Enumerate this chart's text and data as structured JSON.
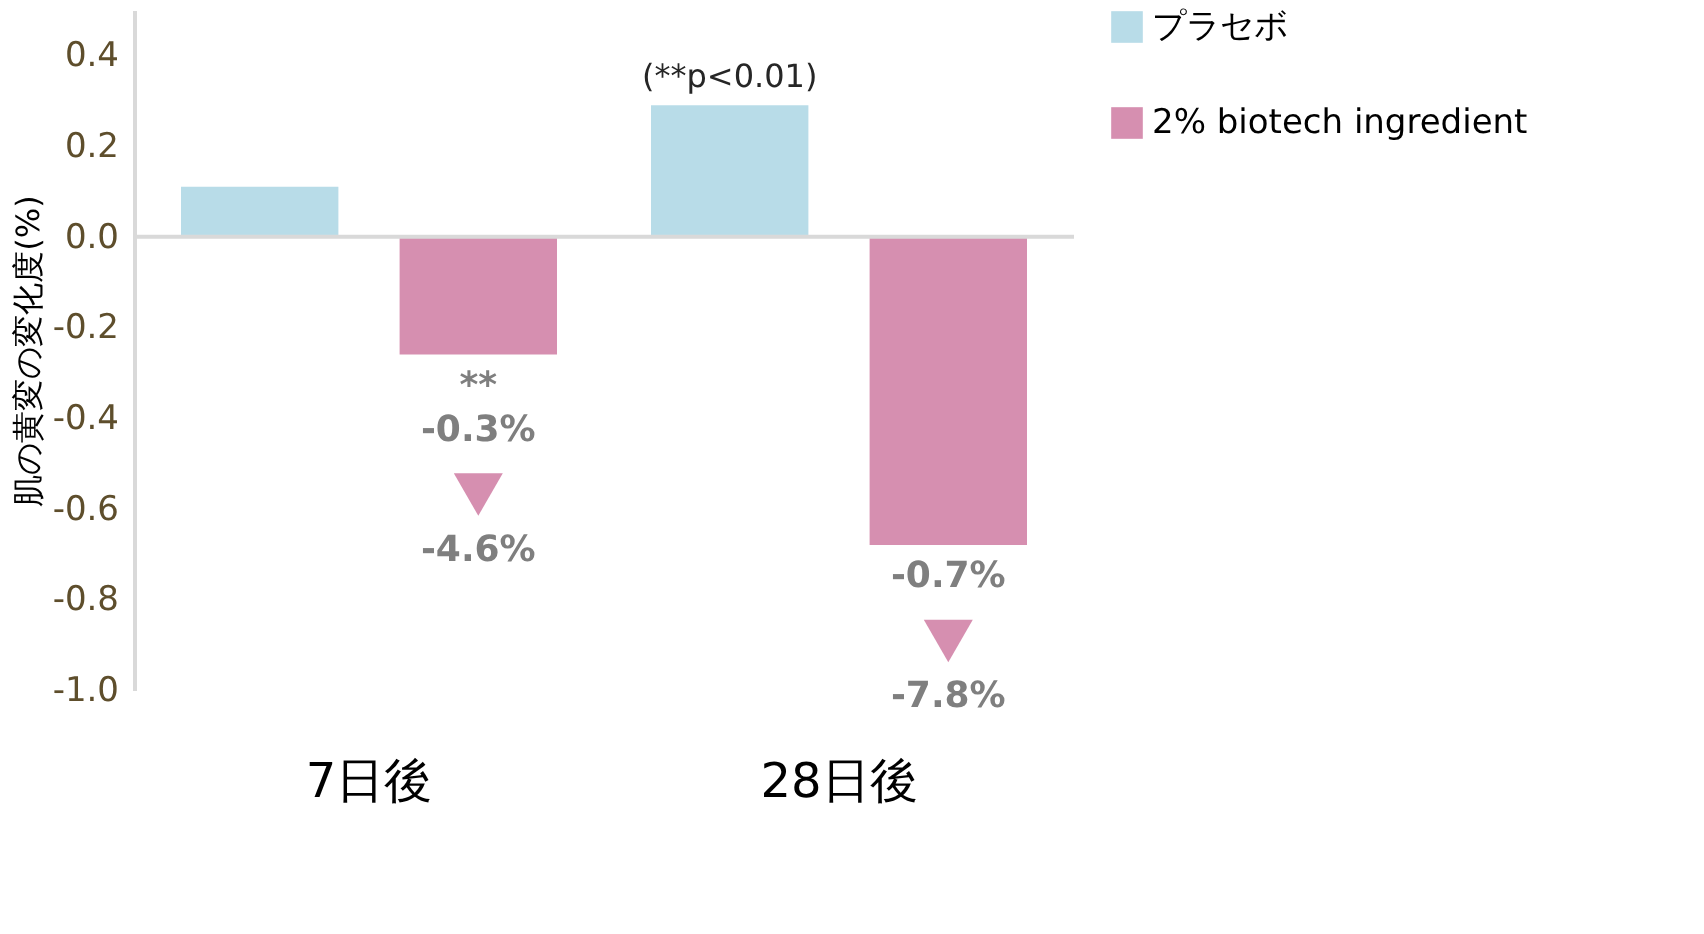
{
  "chart_data": {
    "type": "bar",
    "ylabel": "肌の黄変の変化度(%)",
    "categories": [
      "7日後",
      "28日後"
    ],
    "series": [
      {
        "name": "プラセボ",
        "color": "#b8dce8",
        "values": [
          0.11,
          0.29
        ]
      },
      {
        "name": "2% biotech ingredient",
        "color": "#d68fb0",
        "values": [
          -0.26,
          -0.68
        ]
      }
    ],
    "ylim": [
      -1.0,
      0.5
    ],
    "yticks": [
      {
        "value": 0.4,
        "label": "0.4"
      },
      {
        "value": 0.2,
        "label": "0.2"
      },
      {
        "value": 0.0,
        "label": "0.0"
      },
      {
        "value": -0.2,
        "label": "-0.2"
      },
      {
        "value": -0.4,
        "label": "-0.4"
      },
      {
        "value": -0.6,
        "label": "-0.6"
      },
      {
        "value": -0.8,
        "label": "-0.8"
      },
      {
        "value": -1.0,
        "label": "-1.0"
      }
    ],
    "ref_lines": [
      {
        "axis": "y",
        "value": 0,
        "color": "#d9d9d9"
      }
    ],
    "annotations": [
      "(**p<0.01)",
      "**",
      "-0.3%",
      "-4.6%",
      "-0.7%",
      "-7.8%"
    ],
    "grid": false,
    "legend": "right"
  }
}
